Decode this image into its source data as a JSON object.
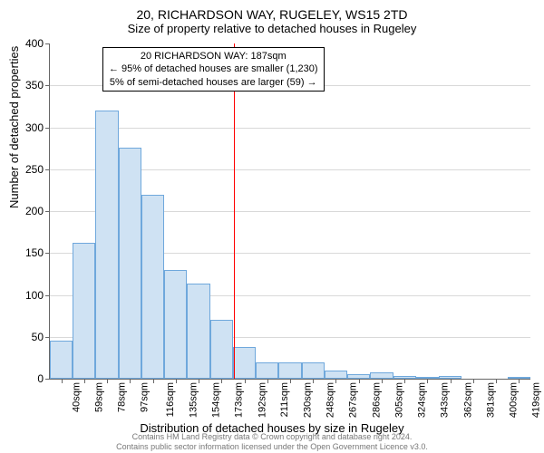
{
  "header": {
    "title": "20, RICHARDSON WAY, RUGELEY, WS15 2TD",
    "subtitle": "Size of property relative to detached houses in Rugeley"
  },
  "chart": {
    "type": "histogram",
    "ylabel": "Number of detached properties",
    "xlabel": "Distribution of detached houses by size in Rugeley",
    "ylim": [
      0,
      400
    ],
    "ytick_step": 50,
    "xlabels": [
      "40sqm",
      "59sqm",
      "78sqm",
      "97sqm",
      "116sqm",
      "135sqm",
      "154sqm",
      "173sqm",
      "192sqm",
      "211sqm",
      "230sqm",
      "248sqm",
      "267sqm",
      "286sqm",
      "305sqm",
      "324sqm",
      "343sqm",
      "362sqm",
      "381sqm",
      "400sqm",
      "419sqm"
    ],
    "values": [
      45,
      162,
      320,
      276,
      220,
      130,
      113,
      70,
      38,
      20,
      20,
      20,
      10,
      5,
      8,
      3,
      2,
      3,
      0,
      0,
      2
    ],
    "bar_fill": "#cfe2f3",
    "bar_stroke": "#6fa8dc",
    "grid_color": "#666666",
    "background_color": "#ffffff",
    "reference_line": {
      "x_index": 8.05,
      "color": "#ff0000"
    },
    "annotation": {
      "lines": [
        "20 RICHARDSON WAY: 187sqm",
        "← 95% of detached houses are smaller (1,230)",
        "5% of semi-detached houses are larger (59) →"
      ],
      "border_color": "#000000",
      "bg": "#ffffff",
      "fontsize": 11
    },
    "label_fontsize": 13,
    "tick_fontsize": 12
  },
  "footer": {
    "line1": "Contains HM Land Registry data © Crown copyright and database right 2024.",
    "line2": "Contains public sector information licensed under the Open Government Licence v3.0."
  }
}
